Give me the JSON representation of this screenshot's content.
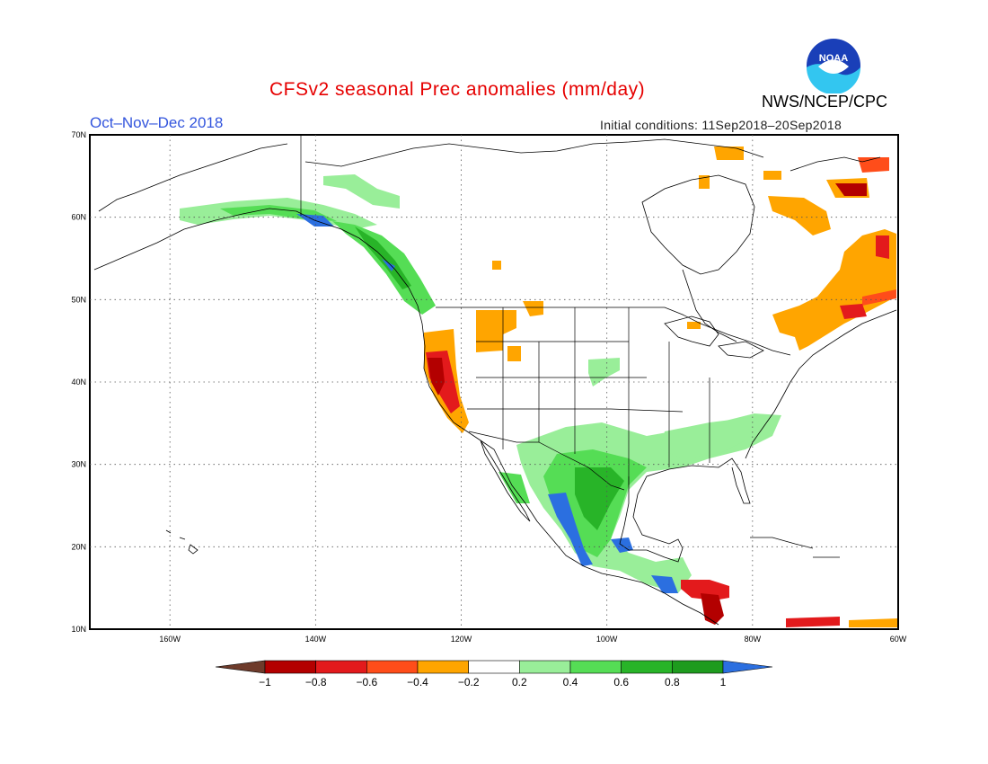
{
  "header": {
    "title": "CFSv2 seasonal Prec anomalies (mm/day)",
    "season": "Oct–Nov–Dec 2018",
    "initial_conditions": "Initial conditions: 11Sep2018–20Sep2018",
    "agency": "NWS/NCEP/CPC",
    "logo_text": "NOAA"
  },
  "axes": {
    "lat_labels": [
      "70N",
      "60N",
      "50N",
      "40N",
      "30N",
      "20N",
      "10N"
    ],
    "lon_labels": [
      "160W",
      "140W",
      "120W",
      "100W",
      "80W",
      "60W"
    ],
    "lat_range": [
      10,
      70
    ],
    "lon_range": [
      -171,
      -60
    ],
    "grid": "dotted"
  },
  "colorbar": {
    "tick_labels": [
      "−1",
      "−0.8",
      "−0.6",
      "−0.4",
      "−0.2",
      "0.2",
      "0.4",
      "0.6",
      "0.8",
      "1"
    ],
    "colors": [
      "#6e3b2b",
      "#b30000",
      "#e31a1c",
      "#ff4d1a",
      "#ffa500",
      "#ffffff",
      "#99ee99",
      "#55dd55",
      "#28b428",
      "#1e9b1e",
      "#2b6fe0"
    ]
  },
  "anomaly_regions": [
    {
      "name": "Alaska south coast",
      "level": "0.4",
      "color": "#99ee99"
    },
    {
      "name": "British Columbia coast",
      "level": "0.6",
      "color": "#55dd55"
    },
    {
      "name": "Northern California",
      "level": "-0.8",
      "color": "#b30000"
    },
    {
      "name": "Central California",
      "level": "-0.4",
      "color": "#ffa500"
    },
    {
      "name": "Northern Rockies",
      "level": "-0.4",
      "color": "#ffa500"
    },
    {
      "name": "Texas / Gulf Coast",
      "level": "0.6",
      "color": "#55dd55"
    },
    {
      "name": "Southeast US",
      "level": "0.4",
      "color": "#99ee99"
    },
    {
      "name": "Western Mexico",
      "level": "1",
      "color": "#2b6fe0"
    },
    {
      "name": "Eastern Canada",
      "level": "-0.4",
      "color": "#ffa500"
    },
    {
      "name": "Labrador",
      "level": "-0.6",
      "color": "#ff4d1a"
    },
    {
      "name": "Central America",
      "level": "-0.8",
      "color": "#b30000"
    }
  ]
}
